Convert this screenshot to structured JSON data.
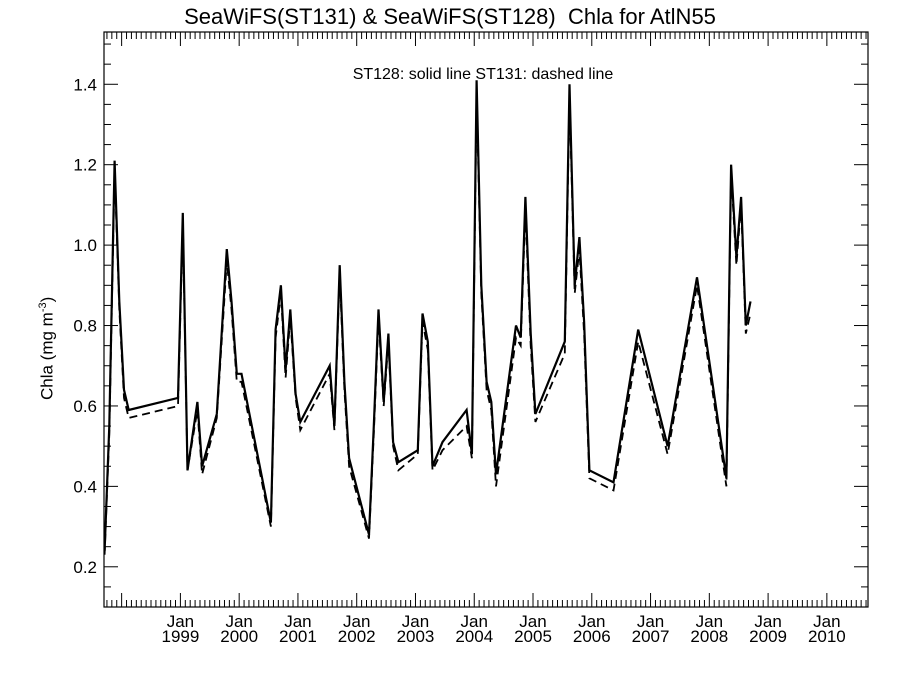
{
  "chart_data": {
    "type": "line",
    "title": "SeaWiFS(ST131) & SeaWiFS(ST128)  Chla for AtlN55",
    "ylabel": "Chla (mg m⁻³)",
    "annotation": "ST128: solid line   ST131: dashed line",
    "ylim": [
      0.1,
      1.53
    ],
    "yticks": [
      0.2,
      0.4,
      0.6,
      0.8,
      1.0,
      1.2,
      1.4
    ],
    "ytick_labels": [
      "0.2",
      "0.4",
      "0.6",
      "0.8",
      "1.0",
      "1.2",
      "1.4"
    ],
    "xlim": [
      1997.7,
      2010.7
    ],
    "xticks": [
      {
        "top": "Jan",
        "bottom": "1999",
        "x": 1999.0
      },
      {
        "top": "Jan",
        "bottom": "2000",
        "x": 2000.0
      },
      {
        "top": "Jan",
        "bottom": "2001",
        "x": 2001.0
      },
      {
        "top": "Jan",
        "bottom": "2002",
        "x": 2002.0
      },
      {
        "top": "Jan",
        "bottom": "2003",
        "x": 2003.0
      },
      {
        "top": "Jan",
        "bottom": "2004",
        "x": 2004.0
      },
      {
        "top": "Jan",
        "bottom": "2005",
        "x": 2005.0
      },
      {
        "top": "Jan",
        "bottom": "2006",
        "x": 2006.0
      },
      {
        "top": "Jan",
        "bottom": "2007",
        "x": 2007.0
      },
      {
        "top": "Jan",
        "bottom": "2008",
        "x": 2008.0
      },
      {
        "top": "Jan",
        "bottom": "2009",
        "x": 2009.0
      },
      {
        "top": "Jan",
        "bottom": "2010",
        "x": 2010.0
      }
    ],
    "series": [
      {
        "name": "ST128",
        "style": "solid",
        "color": "#000000",
        "points": [
          [
            1997.71,
            0.24
          ],
          [
            1997.79,
            0.55
          ],
          [
            1997.88,
            1.21
          ],
          [
            1997.96,
            0.86
          ],
          [
            1998.04,
            0.64
          ],
          [
            1998.12,
            0.59
          ],
          [
            1998.96,
            0.62
          ],
          [
            1999.04,
            1.08
          ],
          [
            1999.12,
            0.44
          ],
          [
            1999.29,
            0.61
          ],
          [
            1999.37,
            0.45
          ],
          [
            1999.62,
            0.58
          ],
          [
            1999.79,
            0.99
          ],
          [
            1999.87,
            0.86
          ],
          [
            1999.96,
            0.68
          ],
          [
            2000.04,
            0.68
          ],
          [
            2000.54,
            0.31
          ],
          [
            2000.62,
            0.79
          ],
          [
            2000.71,
            0.9
          ],
          [
            2000.79,
            0.69
          ],
          [
            2000.87,
            0.84
          ],
          [
            2000.96,
            0.63
          ],
          [
            2001.04,
            0.56
          ],
          [
            2001.54,
            0.7
          ],
          [
            2001.62,
            0.55
          ],
          [
            2001.71,
            0.95
          ],
          [
            2001.79,
            0.66
          ],
          [
            2001.87,
            0.47
          ],
          [
            2002.21,
            0.28
          ],
          [
            2002.29,
            0.55
          ],
          [
            2002.37,
            0.84
          ],
          [
            2002.46,
            0.61
          ],
          [
            2002.54,
            0.78
          ],
          [
            2002.62,
            0.51
          ],
          [
            2002.71,
            0.46
          ],
          [
            2003.04,
            0.49
          ],
          [
            2003.12,
            0.83
          ],
          [
            2003.21,
            0.76
          ],
          [
            2003.29,
            0.45
          ],
          [
            2003.46,
            0.51
          ],
          [
            2003.87,
            0.59
          ],
          [
            2003.96,
            0.48
          ],
          [
            2004.04,
            1.41
          ],
          [
            2004.12,
            0.9
          ],
          [
            2004.21,
            0.66
          ],
          [
            2004.29,
            0.61
          ],
          [
            2004.37,
            0.43
          ],
          [
            2004.71,
            0.8
          ],
          [
            2004.79,
            0.77
          ],
          [
            2004.87,
            1.12
          ],
          [
            2004.96,
            0.78
          ],
          [
            2005.04,
            0.58
          ],
          [
            2005.54,
            0.76
          ],
          [
            2005.62,
            1.4
          ],
          [
            2005.71,
            0.9
          ],
          [
            2005.79,
            1.02
          ],
          [
            2005.87,
            0.81
          ],
          [
            2005.96,
            0.44
          ],
          [
            2006.37,
            0.41
          ],
          [
            2006.79,
            0.79
          ],
          [
            2007.29,
            0.5
          ],
          [
            2007.79,
            0.92
          ],
          [
            2008.29,
            0.42
          ],
          [
            2008.37,
            1.2
          ],
          [
            2008.46,
            0.97
          ],
          [
            2008.54,
            1.12
          ],
          [
            2008.62,
            0.8
          ],
          [
            2008.7,
            0.86
          ]
        ]
      },
      {
        "name": "ST131",
        "style": "dashed",
        "color": "#000000",
        "points": [
          [
            1997.71,
            0.23
          ],
          [
            1997.79,
            0.53
          ],
          [
            1997.88,
            1.19
          ],
          [
            1997.96,
            0.84
          ],
          [
            1998.04,
            0.62
          ],
          [
            1998.12,
            0.57
          ],
          [
            1998.96,
            0.6
          ],
          [
            1999.04,
            1.06
          ],
          [
            1999.12,
            0.44
          ],
          [
            1999.29,
            0.59
          ],
          [
            1999.37,
            0.43
          ],
          [
            1999.62,
            0.57
          ],
          [
            1999.79,
            0.96
          ],
          [
            1999.87,
            0.84
          ],
          [
            1999.96,
            0.66
          ],
          [
            2000.04,
            0.66
          ],
          [
            2000.54,
            0.3
          ],
          [
            2000.62,
            0.77
          ],
          [
            2000.71,
            0.88
          ],
          [
            2000.79,
            0.67
          ],
          [
            2000.87,
            0.82
          ],
          [
            2000.96,
            0.62
          ],
          [
            2001.04,
            0.54
          ],
          [
            2001.54,
            0.68
          ],
          [
            2001.62,
            0.54
          ],
          [
            2001.71,
            0.93
          ],
          [
            2001.79,
            0.64
          ],
          [
            2001.87,
            0.45
          ],
          [
            2002.21,
            0.27
          ],
          [
            2002.29,
            0.53
          ],
          [
            2002.37,
            0.82
          ],
          [
            2002.46,
            0.6
          ],
          [
            2002.54,
            0.76
          ],
          [
            2002.62,
            0.5
          ],
          [
            2002.71,
            0.44
          ],
          [
            2003.04,
            0.48
          ],
          [
            2003.12,
            0.81
          ],
          [
            2003.21,
            0.74
          ],
          [
            2003.29,
            0.44
          ],
          [
            2003.46,
            0.49
          ],
          [
            2003.87,
            0.55
          ],
          [
            2003.96,
            0.47
          ],
          [
            2004.04,
            1.38
          ],
          [
            2004.12,
            0.88
          ],
          [
            2004.21,
            0.64
          ],
          [
            2004.29,
            0.59
          ],
          [
            2004.37,
            0.4
          ],
          [
            2004.71,
            0.77
          ],
          [
            2004.79,
            0.75
          ],
          [
            2004.87,
            1.09
          ],
          [
            2004.96,
            0.75
          ],
          [
            2005.04,
            0.56
          ],
          [
            2005.54,
            0.73
          ],
          [
            2005.62,
            1.37
          ],
          [
            2005.71,
            0.88
          ],
          [
            2005.79,
            0.99
          ],
          [
            2005.87,
            0.78
          ],
          [
            2005.96,
            0.42
          ],
          [
            2006.37,
            0.39
          ],
          [
            2006.79,
            0.76
          ],
          [
            2007.29,
            0.48
          ],
          [
            2007.79,
            0.9
          ],
          [
            2008.29,
            0.4
          ],
          [
            2008.37,
            1.18
          ],
          [
            2008.46,
            0.95
          ],
          [
            2008.54,
            1.1
          ],
          [
            2008.62,
            0.78
          ],
          [
            2008.7,
            0.83
          ]
        ]
      }
    ],
    "grid": false
  }
}
